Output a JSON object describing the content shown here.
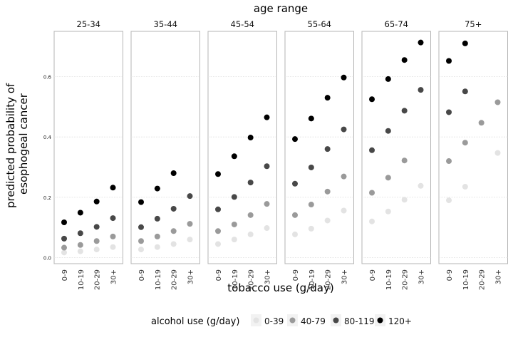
{
  "chart_data": {
    "type": "scatter",
    "facet_title": "age range",
    "facets": [
      "25-34",
      "35-44",
      "45-54",
      "55-64",
      "65-74",
      "75+"
    ],
    "categories": [
      "0-9",
      "10-19",
      "20-29",
      "30+"
    ],
    "xlabel": "tobacco use (g/day)",
    "ylabel_lines": [
      "predicted probability of",
      "esophogeal cancer"
    ],
    "ylim": [
      -0.02,
      0.75
    ],
    "yticks": [
      0.0,
      0.2,
      0.4,
      0.6
    ],
    "ytick_labels": [
      "0.0",
      "0.2",
      "0.4",
      "0.6"
    ],
    "grid": true,
    "legend": {
      "title": "alcohol use (g/day)",
      "position": "bottom",
      "items": [
        "0-39",
        "40-79",
        "80-119",
        "120+"
      ]
    },
    "series": [
      {
        "name": "0-39",
        "color": "#e3e3e3",
        "values": [
          [
            0.017,
            0.021,
            0.027,
            0.035
          ],
          [
            0.027,
            0.035,
            0.045,
            0.06
          ],
          [
            0.045,
            0.06,
            0.077,
            0.098
          ],
          [
            0.077,
            0.096,
            0.123,
            0.156
          ],
          [
            0.12,
            0.153,
            0.192,
            0.238
          ],
          [
            0.19,
            0.235,
            null,
            0.347
          ]
        ]
      },
      {
        "name": "40-79",
        "color": "#9a9a9a",
        "values": [
          [
            0.033,
            0.042,
            0.055,
            0.07
          ],
          [
            0.055,
            0.07,
            0.088,
            0.112
          ],
          [
            0.088,
            0.11,
            0.141,
            0.178
          ],
          [
            0.141,
            0.176,
            0.219,
            0.269
          ],
          [
            0.215,
            0.265,
            0.322,
            null
          ],
          [
            0.32,
            0.381,
            0.447,
            0.515
          ]
        ]
      },
      {
        "name": "80-119",
        "color": "#484848",
        "values": [
          [
            0.063,
            0.081,
            0.102,
            0.131
          ],
          [
            0.101,
            0.129,
            0.162,
            0.204
          ],
          [
            0.16,
            0.201,
            0.249,
            0.303
          ],
          [
            0.245,
            0.299,
            0.36,
            0.425
          ],
          [
            0.356,
            0.42,
            0.487,
            0.556
          ],
          [
            0.482,
            0.551,
            null,
            null
          ]
        ]
      },
      {
        "name": "120+",
        "color": "#000000",
        "values": [
          [
            0.117,
            0.149,
            0.186,
            0.232
          ],
          [
            0.184,
            0.229,
            0.28,
            null
          ],
          [
            0.277,
            0.336,
            0.398,
            0.465
          ],
          [
            0.393,
            0.461,
            0.53,
            0.597
          ],
          [
            0.525,
            0.592,
            0.655,
            0.713
          ],
          [
            0.652,
            0.71,
            null,
            null
          ]
        ]
      }
    ]
  }
}
